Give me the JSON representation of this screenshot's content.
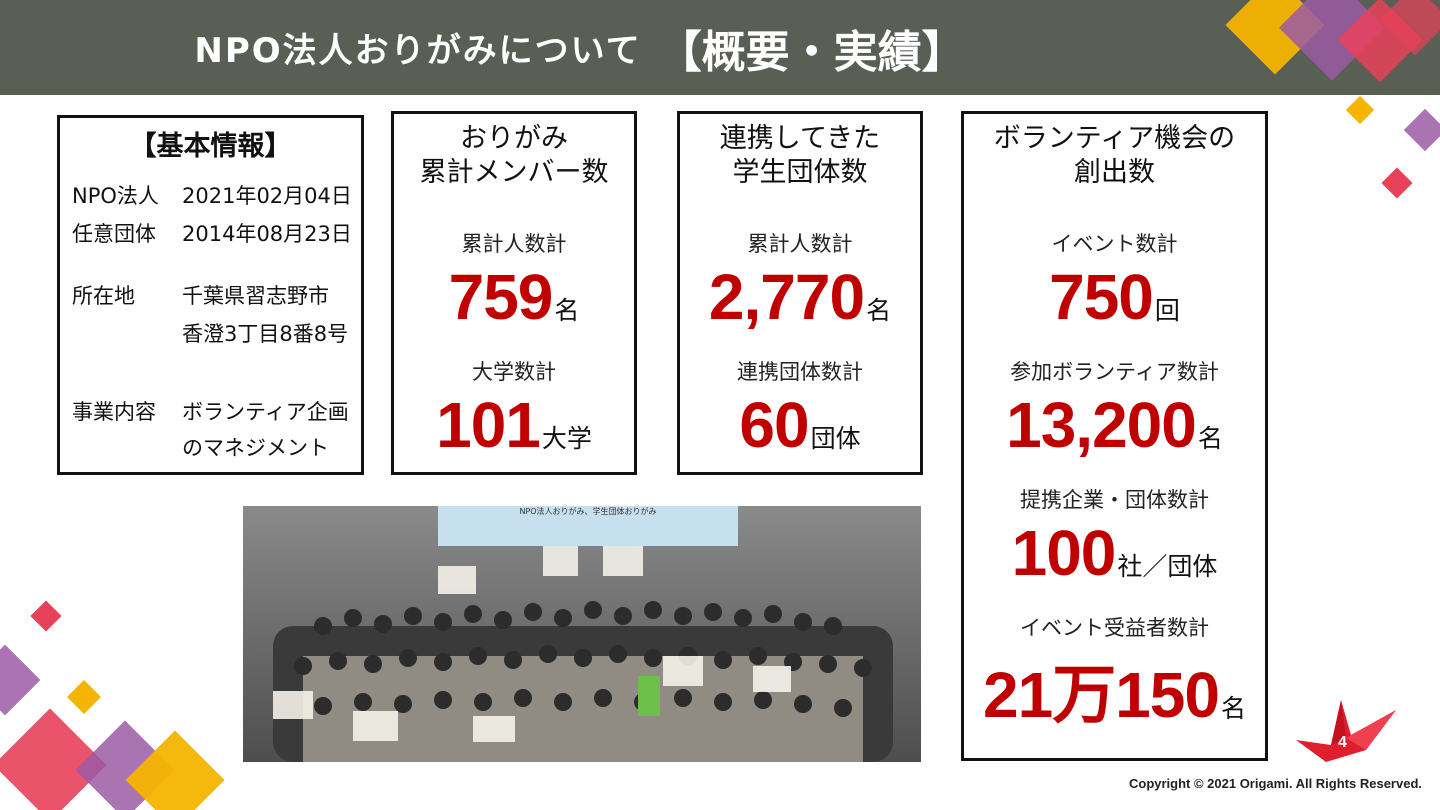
{
  "header": {
    "title_main": "NPO法人おりがみについて",
    "title_bracket": "【概要・実績】"
  },
  "basic_info": {
    "heading": "【基本情報】",
    "rows": [
      {
        "key": "NPO法人",
        "value": [
          "2021年02月04日"
        ]
      },
      {
        "key": "任意団体",
        "value": [
          "2014年08月23日"
        ]
      },
      {
        "key": "所在地",
        "value": [
          "千葉県習志野市",
          "香澄3丁目8番8号"
        ]
      },
      {
        "key": "事業内容",
        "value": [
          "ボランティア企画",
          "のマネジメント"
        ]
      }
    ]
  },
  "members": {
    "heading": [
      "おりがみ",
      "累計メンバー数"
    ],
    "stats": [
      {
        "label": "累計人数計",
        "value": "759",
        "unit": "名"
      },
      {
        "label": "大学数計",
        "value": "101",
        "unit": "大学"
      }
    ]
  },
  "groups": {
    "heading": [
      "連携してきた",
      "学生団体数"
    ],
    "stats": [
      {
        "label": "累計人数計",
        "value": "2,770",
        "unit": "名"
      },
      {
        "label": "連携団体数計",
        "value": "60",
        "unit": "団体"
      }
    ]
  },
  "volunteer": {
    "heading": [
      "ボランティア機会の",
      "創出数"
    ],
    "stats": [
      {
        "label": "イベント数計",
        "value": "750",
        "unit": "回"
      },
      {
        "label": "参加ボランティア数計",
        "value": "13,200",
        "unit": "名"
      },
      {
        "label": "提携企業・団体数計",
        "value": "100",
        "unit": "社／団体"
      },
      {
        "label": "イベント受益者数計",
        "value": "21万150",
        "unit": "名"
      }
    ]
  },
  "photo": {
    "banner_text": "NPO法人おりがみ、学生団体おりがみ"
  },
  "footer": {
    "copyright": "Copyright © 2021 Origami. All Rights Reserved.",
    "page_number": "4"
  },
  "colors": {
    "header_bg": "#5a5f55",
    "accent_red": "#c00000",
    "pink": "#e8415a",
    "purple": "#9b5aa4",
    "yellow": "#f4b400"
  }
}
